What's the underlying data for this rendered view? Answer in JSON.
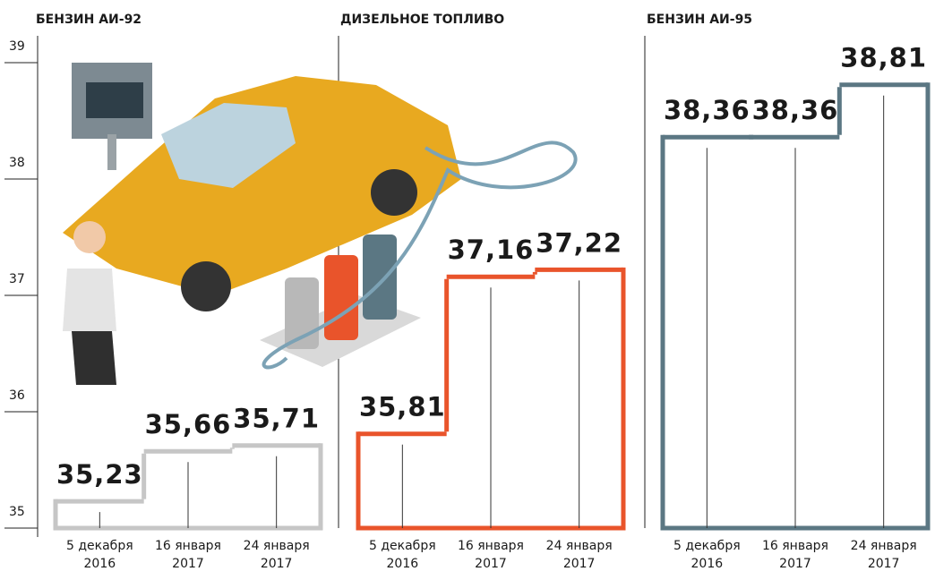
{
  "chart_data": [
    {
      "type": "step",
      "title": "БЕНЗИН АИ-92",
      "categories": [
        "5 декабря 2016",
        "16 января 2017",
        "24 января 2017"
      ],
      "values": [
        35.23,
        35.66,
        35.71
      ],
      "value_labels": [
        "35,23",
        "35,66",
        "35,71"
      ],
      "color": "#c6c6c6",
      "ylim": [
        35,
        39
      ],
      "yticks": [
        35,
        36,
        37,
        38,
        39
      ]
    },
    {
      "type": "step",
      "title": "ДИЗЕЛЬНОЕ ТОПЛИВО",
      "categories": [
        "5 декабря 2016",
        "16 января 2017",
        "24 января 2017"
      ],
      "values": [
        35.81,
        37.16,
        37.22
      ],
      "value_labels": [
        "35,81",
        "37,16",
        "37,22"
      ],
      "color": "#e9542b",
      "ylim": [
        35,
        39
      ]
    },
    {
      "type": "step",
      "title": "БЕНЗИН АИ-95",
      "categories": [
        "5 декабря 2016",
        "16 января 2017",
        "24 января 2017"
      ],
      "values": [
        38.36,
        38.36,
        38.81
      ],
      "value_labels": [
        "38,36",
        "38,36",
        "38,81"
      ],
      "color": "#5b7783",
      "ylim": [
        35,
        39
      ]
    }
  ]
}
